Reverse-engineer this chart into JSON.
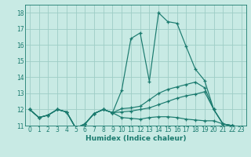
{
  "xlabel": "Humidex (Indice chaleur)",
  "xlim": [
    -0.5,
    23.5
  ],
  "ylim": [
    11,
    18.5
  ],
  "yticks": [
    11,
    12,
    13,
    14,
    15,
    16,
    17,
    18
  ],
  "xticks": [
    0,
    1,
    2,
    3,
    4,
    5,
    6,
    7,
    8,
    9,
    10,
    11,
    12,
    13,
    14,
    15,
    16,
    17,
    18,
    19,
    20,
    21,
    22,
    23
  ],
  "bg_color": "#c8eae4",
  "grid_color": "#9dcdc6",
  "line_color": "#1a7a6e",
  "line1_x": [
    0,
    1,
    2,
    3,
    4,
    5,
    6,
    7,
    8,
    9,
    10,
    11,
    12,
    13,
    14,
    15,
    16,
    17,
    18,
    19,
    20,
    21,
    22,
    23
  ],
  "line1_y": [
    12.0,
    11.5,
    11.65,
    12.0,
    11.85,
    10.85,
    11.1,
    11.75,
    12.0,
    11.8,
    13.2,
    16.4,
    16.75,
    13.75,
    18.0,
    17.45,
    17.35,
    15.9,
    14.5,
    13.8,
    12.0,
    11.1,
    11.0,
    10.9
  ],
  "line2_x": [
    0,
    1,
    2,
    3,
    4,
    5,
    6,
    7,
    8,
    9,
    10,
    11,
    12,
    13,
    14,
    15,
    16,
    17,
    18,
    19,
    20,
    21,
    22,
    23
  ],
  "line2_y": [
    12.0,
    11.5,
    11.65,
    12.0,
    11.85,
    10.85,
    11.1,
    11.75,
    12.0,
    11.8,
    12.05,
    12.1,
    12.2,
    12.6,
    13.0,
    13.25,
    13.4,
    13.55,
    13.7,
    13.35,
    12.0,
    11.1,
    11.0,
    10.9
  ],
  "line3_x": [
    0,
    1,
    2,
    3,
    4,
    5,
    6,
    7,
    8,
    9,
    10,
    11,
    12,
    13,
    14,
    15,
    16,
    17,
    18,
    19,
    20,
    21,
    22,
    23
  ],
  "line3_y": [
    12.0,
    11.5,
    11.65,
    12.0,
    11.85,
    10.85,
    11.1,
    11.75,
    12.0,
    11.8,
    11.85,
    11.9,
    12.0,
    12.1,
    12.3,
    12.5,
    12.7,
    12.85,
    12.95,
    13.1,
    12.0,
    11.1,
    11.0,
    10.9
  ],
  "line4_x": [
    0,
    1,
    2,
    3,
    4,
    5,
    6,
    7,
    8,
    9,
    10,
    11,
    12,
    13,
    14,
    15,
    16,
    17,
    18,
    19,
    20,
    21,
    22,
    23
  ],
  "line4_y": [
    12.0,
    11.5,
    11.65,
    12.0,
    11.85,
    10.85,
    11.1,
    11.75,
    12.0,
    11.8,
    11.5,
    11.45,
    11.4,
    11.5,
    11.55,
    11.55,
    11.5,
    11.4,
    11.35,
    11.3,
    11.3,
    11.1,
    11.0,
    10.9
  ]
}
